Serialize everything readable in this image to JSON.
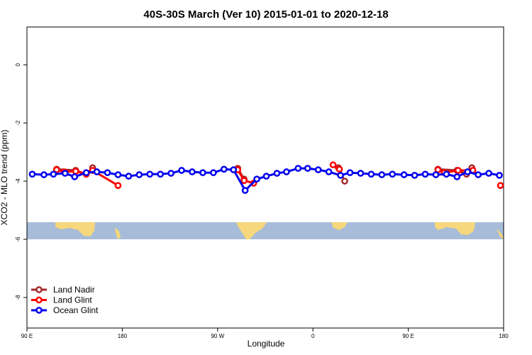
{
  "chart_data": {
    "type": "line",
    "title": "40S-30S March (Ver 10)   2015-01-01 to 2020-12-18",
    "xlabel": "Longitude",
    "ylabel": "XCO2 - MLO trend (ppm)",
    "xlim": [
      90,
      540
    ],
    "ylim": [
      -9.05,
      1.3
    ],
    "xticks": [
      {
        "value": 90,
        "label": "90 E"
      },
      180,
      {
        "value": 270,
        "label": "90 W"
      },
      {
        "value": 360,
        "label": "0"
      },
      {
        "value": 450,
        "label": "90 E"
      },
      {
        "value": 540,
        "label": "180"
      }
    ],
    "yticks": [
      0,
      -2,
      -4,
      -6,
      -8
    ],
    "legend": "bottom-left",
    "series": [
      {
        "name": "Land Nadir",
        "color": "#a52a2a",
        "x": [
          118,
          136,
          146,
          152,
          null,
          289,
          295,
          null,
          384,
          390,
          null,
          478,
          496,
          505,
          510
        ],
        "values": [
          -3.59,
          -3.63,
          -3.76,
          -3.54,
          null,
          -3.56,
          -3.93,
          null,
          -3.54,
          -4.0,
          null,
          -3.59,
          -3.63,
          -3.76,
          -3.54
        ]
      },
      {
        "name": "Land Glint",
        "color": "#ff0000",
        "x": [
          118,
          125,
          136,
          146,
          152,
          176,
          null,
          289,
          295,
          304,
          null,
          379,
          385,
          null,
          478,
          484,
          497,
          511,
          null,
          537
        ],
        "values": [
          -3.61,
          -3.68,
          -3.66,
          -3.76,
          -3.63,
          -4.15,
          null,
          -3.61,
          -3.98,
          -4.07,
          null,
          -3.44,
          -3.59,
          null,
          -3.61,
          -3.71,
          -3.63,
          -3.63,
          null,
          -4.15
        ]
      },
      {
        "name": "Ocean Glint",
        "color": "#0000ee",
        "x": [
          95,
          106,
          115,
          126,
          135,
          146,
          156,
          166,
          176,
          186,
          196,
          206,
          216,
          226,
          236,
          246,
          256,
          266,
          276,
          285,
          296,
          307,
          316,
          326,
          335,
          346,
          355,
          365,
          375,
          386,
          395,
          405,
          415,
          425,
          435,
          446,
          456,
          466,
          476,
          486,
          496,
          506,
          516,
          526,
          536
        ],
        "values": [
          -3.76,
          -3.78,
          -3.76,
          -3.73,
          -3.85,
          -3.71,
          -3.68,
          -3.71,
          -3.78,
          -3.83,
          -3.78,
          -3.76,
          -3.76,
          -3.73,
          -3.63,
          -3.68,
          -3.71,
          -3.71,
          -3.59,
          -3.61,
          -4.32,
          -3.93,
          -3.83,
          -3.73,
          -3.68,
          -3.56,
          -3.56,
          -3.61,
          -3.68,
          -3.8,
          -3.71,
          -3.73,
          -3.76,
          -3.78,
          -3.76,
          -3.78,
          -3.8,
          -3.76,
          -3.78,
          -3.76,
          -3.85,
          -3.68,
          -3.78,
          -3.73,
          -3.8
        ]
      }
    ]
  }
}
